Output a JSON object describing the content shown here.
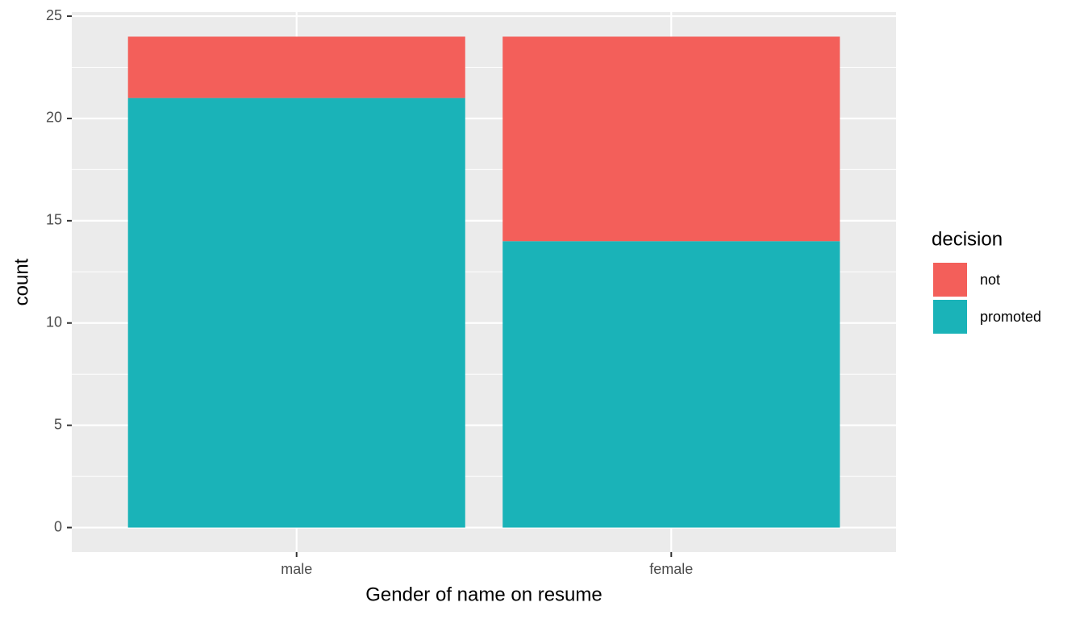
{
  "chart_data": {
    "type": "stacked_bar",
    "x_label": "Gender of name on resume",
    "y_label": "count",
    "categories": [
      "male",
      "female"
    ],
    "series": [
      {
        "name": "not",
        "color": "#F35F5A",
        "values": [
          3,
          10
        ]
      },
      {
        "name": "promoted",
        "color": "#1AB3B8",
        "values": [
          21,
          14
        ]
      }
    ],
    "legend_title": "decision",
    "legend_position": "right",
    "ylim": [
      -1.2,
      25.2
    ],
    "yticks": [
      0,
      5,
      10,
      15,
      20,
      25
    ],
    "grid": true,
    "minor_grid": true
  }
}
